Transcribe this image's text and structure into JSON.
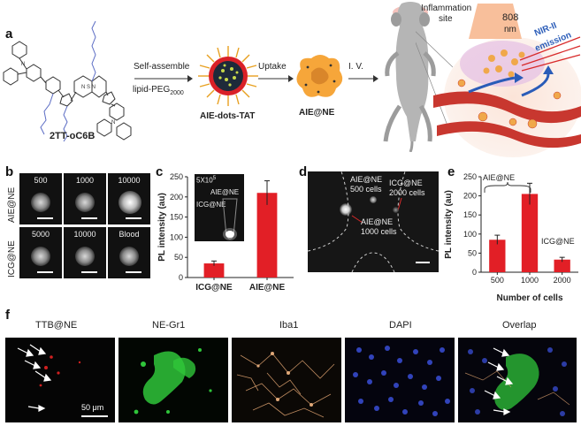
{
  "panel_labels": {
    "a": "a",
    "b": "b",
    "c": "c",
    "d": "d",
    "e": "e",
    "f": "f"
  },
  "panel_a": {
    "molecule_name": "2TT-oC6B",
    "step1_line1": "Self-assemble",
    "step1_line2": "lipid-PEG",
    "step1_sub": "2000",
    "dots_label": "AIE-dots-TAT",
    "step2": "Uptake",
    "cell_label": "AIE@NE",
    "step3": "I. V.",
    "inflammation_line1": "Inflammation",
    "inflammation_line2": "site",
    "laser_line1": "808",
    "laser_line2": "nm",
    "emission_line1": "NIR-II",
    "emission_line2": "emission"
  },
  "panel_b": {
    "row_labels": [
      "AIE@NE",
      "ICG@NE"
    ],
    "tiles": [
      "500",
      "1000",
      "10000",
      "5000",
      "10000",
      "Blood"
    ]
  },
  "panel_c": {
    "inset_text": "5X10",
    "inset_sup": "5",
    "inset_aie": "AIE@NE",
    "inset_icg": "ICG@NE"
  },
  "panel_d": {
    "label1_line1": "AIE@NE",
    "label1_line2": "500 cells",
    "label2_line1": "ICG@NE",
    "label2_line2": "2000 cells",
    "label3_line1": "AIE@NE",
    "label3_line2": "1000 cells"
  },
  "panel_e": {
    "group_label": "AIE@NE",
    "icg_label": "ICG@NE"
  },
  "panel_f": {
    "titles": [
      "TTB@NE",
      "NE-Gr1",
      "Iba1",
      "DAPI",
      "Overlap"
    ],
    "scalebar": "50 μm"
  },
  "chart_data": [
    {
      "type": "bar",
      "categories": [
        "ICG@NE",
        "AIE@NE"
      ],
      "values": [
        35,
        210
      ],
      "errors": [
        6,
        30
      ],
      "ylabel": "PL intensity (au)",
      "ylim": [
        0,
        250
      ],
      "yticks": [
        0,
        50,
        100,
        150,
        200,
        250
      ],
      "color": "#e21f26"
    },
    {
      "type": "bar",
      "categories": [
        "500",
        "1000",
        "2000"
      ],
      "values": [
        85,
        205,
        33
      ],
      "errors": [
        12,
        28,
        6
      ],
      "xlabel": "Number of cells",
      "ylabel": "PL intensity (au)",
      "ylim": [
        0,
        250
      ],
      "yticks": [
        0,
        50,
        100,
        150,
        200,
        250
      ],
      "color": "#e21f26"
    }
  ]
}
